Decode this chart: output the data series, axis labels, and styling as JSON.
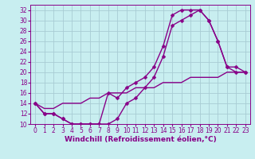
{
  "xlabel": "Windchill (Refroidissement éolien,°C)",
  "background_color": "#c8eef0",
  "grid_color": "#a8ccd4",
  "line_color": "#880088",
  "xlim": [
    -0.5,
    23.5
  ],
  "ylim": [
    10,
    33
  ],
  "yticks": [
    10,
    12,
    14,
    16,
    18,
    20,
    22,
    24,
    26,
    28,
    30,
    32
  ],
  "xticks": [
    0,
    1,
    2,
    3,
    4,
    5,
    6,
    7,
    8,
    9,
    10,
    11,
    12,
    13,
    14,
    15,
    16,
    17,
    18,
    19,
    20,
    21,
    22,
    23
  ],
  "curve1_x": [
    0,
    1,
    2,
    3,
    4,
    5,
    6,
    7,
    8,
    9,
    10,
    11,
    12,
    13,
    14,
    15,
    16,
    17,
    18,
    19,
    20,
    21,
    22,
    23
  ],
  "curve1_y": [
    14,
    12,
    12,
    11,
    10,
    10,
    10,
    10,
    10,
    11,
    14,
    15,
    17,
    19,
    23,
    29,
    30,
    31,
    32,
    30,
    26,
    21,
    21,
    20
  ],
  "curve2_x": [
    0,
    1,
    2,
    3,
    4,
    5,
    6,
    7,
    8,
    9,
    10,
    11,
    12,
    13,
    14,
    15,
    16,
    17,
    18,
    19,
    20,
    21,
    22,
    23
  ],
  "curve2_y": [
    14,
    12,
    12,
    11,
    10,
    10,
    10,
    10,
    16,
    15,
    17,
    18,
    19,
    21,
    25,
    31,
    32,
    32,
    32,
    30,
    26,
    21,
    20,
    20
  ],
  "curve3_x": [
    0,
    1,
    2,
    3,
    4,
    5,
    6,
    7,
    8,
    9,
    10,
    11,
    12,
    13,
    14,
    15,
    16,
    17,
    18,
    19,
    20,
    21,
    22,
    23
  ],
  "curve3_y": [
    14,
    13,
    13,
    14,
    14,
    14,
    15,
    15,
    16,
    16,
    16,
    17,
    17,
    17,
    18,
    18,
    18,
    19,
    19,
    19,
    19,
    20,
    20,
    20
  ],
  "marker": "D",
  "markersize": 2.5,
  "linewidth": 1.0,
  "xlabel_fontsize": 6.5,
  "tick_fontsize": 5.5
}
